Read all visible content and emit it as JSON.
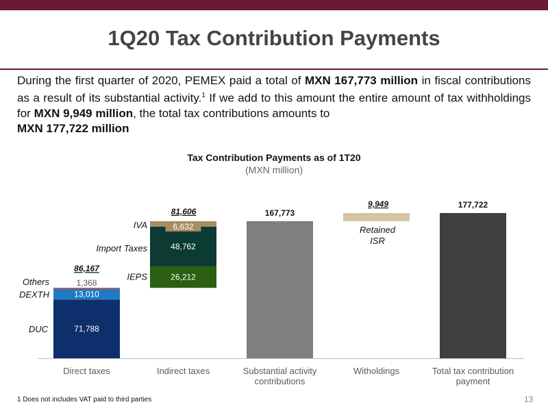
{
  "slide": {
    "title": "1Q20 Tax Contribution Payments",
    "intro_parts": [
      "During the first quarter of 2020, PEMEX paid a total of ",
      "MXN 167,773 million",
      " in fiscal contributions as a result of its substantial activity.",
      "1",
      " If we add to this amount the entire amount of tax withholdings for ",
      "MXN 9,949 million",
      ", the total tax contributions amounts to ",
      "MXN 177,722 million"
    ],
    "footnote": "1 Does not includes VAT paid to third parties",
    "page_number": "13",
    "colors": {
      "brand": "#6b1a35"
    }
  },
  "chart_data": {
    "type": "bar",
    "title": "Tax Contribution Payments as of 1T20",
    "subtitle": "(MXN million)",
    "categories": [
      "Direct taxes",
      "Indirect taxes",
      "Substantial activity contributions",
      "Witholdings",
      "Total tax contribution payment"
    ],
    "category_lines": [
      [
        "Direct taxes"
      ],
      [
        "Indirect taxes"
      ],
      [
        "Substantial activity",
        "contributions"
      ],
      [
        "Witholdings"
      ],
      [
        "Total tax contribution",
        "payment"
      ]
    ],
    "grid": false,
    "direct_taxes": {
      "total_label": "86,167",
      "segments": [
        {
          "name": "DUC",
          "value": 71788,
          "label": "71,788",
          "color": "#0d2f6b"
        },
        {
          "name": "DEXTH",
          "value": 13010,
          "label": "13,010",
          "color": "#1f7bc4"
        },
        {
          "name": "Others",
          "value": 1368,
          "label": "1,368",
          "color": "#c0392b"
        }
      ]
    },
    "indirect_taxes": {
      "total_label": "81,606",
      "segments": [
        {
          "name": "IEPS",
          "value": 26212,
          "label": "26,212",
          "color": "#2b5f12"
        },
        {
          "name": "Import Taxes",
          "value": 48762,
          "label": "48,762",
          "color": "#0b3b33"
        },
        {
          "name": "IVA",
          "value": 6632,
          "label": "6,632",
          "color": "#a88c64"
        }
      ]
    },
    "substantial_activity": {
      "value": 167773,
      "label": "167,773",
      "color": "#7f7f7f"
    },
    "witholdings": {
      "name": "Retained ISR",
      "name_lines": [
        "Retained",
        "ISR"
      ],
      "value": 9949,
      "label": "9,949",
      "color": "#d6c3a0"
    },
    "total": {
      "value": 177722,
      "label": "177,722",
      "color": "#3f3f3f"
    }
  }
}
